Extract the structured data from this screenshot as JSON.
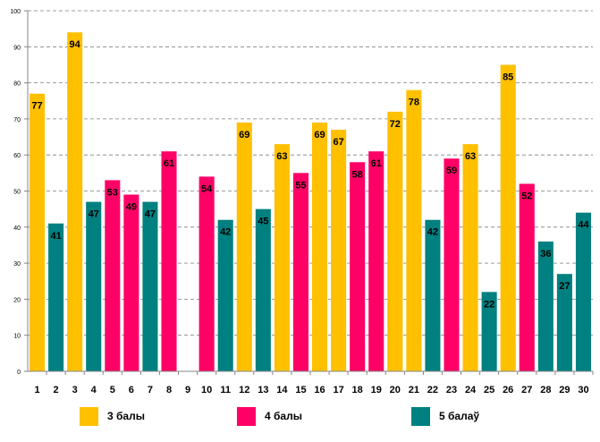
{
  "chart_data": {
    "type": "bar",
    "title": "",
    "xlabel": "",
    "ylabel": "",
    "ylim": [
      0,
      100
    ],
    "yticks": [
      0,
      10,
      20,
      30,
      40,
      50,
      60,
      70,
      80,
      90,
      100
    ],
    "grid": true,
    "categories": [
      "1",
      "2",
      "3",
      "4",
      "5",
      "6",
      "7",
      "8",
      "9",
      "10",
      "11",
      "12",
      "13",
      "14",
      "15",
      "16",
      "17",
      "18",
      "19",
      "20",
      "21",
      "22",
      "23",
      "24",
      "25",
      "26",
      "27",
      "28",
      "29",
      "30"
    ],
    "values": [
      77,
      41,
      94,
      47,
      53,
      49,
      47,
      61,
      null,
      54,
      42,
      69,
      45,
      63,
      55,
      69,
      67,
      58,
      61,
      72,
      78,
      42,
      59,
      63,
      22,
      85,
      52,
      36,
      27,
      44
    ],
    "groups": [
      "3",
      "5",
      "3",
      "5",
      "4",
      "4",
      "5",
      "4",
      null,
      "4",
      "5",
      "3",
      "5",
      "3",
      "4",
      "3",
      "3",
      "4",
      "4",
      "3",
      "3",
      "5",
      "4",
      "3",
      "5",
      "3",
      "4",
      "5",
      "5",
      "5"
    ],
    "legend": [
      {
        "key": "3",
        "label": "3 балы",
        "color": "#FFC000"
      },
      {
        "key": "4",
        "label": "4 балы",
        "color": "#FF0066"
      },
      {
        "key": "5",
        "label": "5 балаў",
        "color": "#008080"
      }
    ],
    "legend_position": "bottom"
  }
}
